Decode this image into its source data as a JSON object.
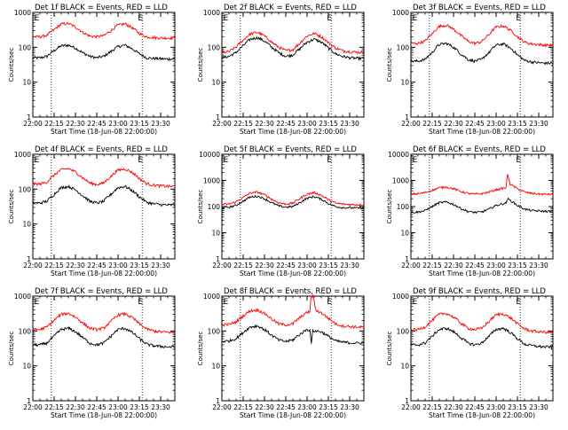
{
  "figure": {
    "background": "#ffffff",
    "axis_color": "#000000",
    "events_color": "#000000",
    "lld_color": "#ff0000",
    "xlabel": "Start Time (18-Jun-08 22:00:00)",
    "ylabel": "Counts/sec",
    "x_tick_labels": [
      "22:00",
      "22:15",
      "22:30",
      "22:45",
      "23:00",
      "23:15",
      "23:30"
    ],
    "x_tick_minutes": [
      0,
      15,
      30,
      45,
      60,
      75,
      90
    ],
    "xlim_minutes": [
      0,
      100
    ],
    "ylim": [
      1,
      1000
    ],
    "y_tick_labels": [
      "1",
      "10",
      "100",
      "1000"
    ],
    "y_tick_values": [
      1,
      10,
      100,
      1000
    ],
    "vline_minutes": [
      13,
      77
    ],
    "marker_labels": [
      "E",
      "E"
    ],
    "marker_minutes": [
      1,
      74
    ]
  },
  "chart_data": [
    {
      "type": "line",
      "title": "Det 1f  BLACK = Events, RED = LLD",
      "xlabel": "Start Time (18-Jun-08 22:00:00)",
      "ylabel": "Counts/sec",
      "xlim_minutes": [
        0,
        100
      ],
      "ylim": [
        1,
        1000
      ],
      "series": [
        {
          "name": "Events",
          "color": "#000000",
          "x": [
            0,
            5,
            10,
            15,
            20,
            25,
            30,
            35,
            40,
            45,
            50,
            55,
            60,
            65,
            70,
            75,
            80,
            85,
            90,
            95,
            100
          ],
          "values": [
            50,
            50,
            55,
            80,
            110,
            115,
            95,
            70,
            55,
            50,
            55,
            75,
            105,
            115,
            90,
            65,
            50,
            48,
            47,
            46,
            46
          ]
        },
        {
          "name": "LLD",
          "color": "#ff0000",
          "x": [
            0,
            5,
            10,
            15,
            20,
            25,
            30,
            35,
            40,
            45,
            50,
            55,
            60,
            65,
            70,
            75,
            80,
            85,
            90,
            95,
            100
          ],
          "values": [
            200,
            200,
            220,
            320,
            460,
            480,
            380,
            270,
            210,
            200,
            215,
            300,
            430,
            470,
            360,
            250,
            200,
            190,
            185,
            185,
            185
          ]
        }
      ]
    },
    {
      "type": "line",
      "title": "Det 2f  BLACK = Events, RED = LLD",
      "xlabel": "Start Time (18-Jun-08 22:00:00)",
      "ylabel": "Counts/sec",
      "xlim_minutes": [
        0,
        100
      ],
      "ylim": [
        1,
        1000
      ],
      "series": [
        {
          "name": "Events",
          "color": "#000000",
          "x": [
            0,
            5,
            10,
            15,
            20,
            25,
            30,
            35,
            40,
            45,
            50,
            55,
            60,
            65,
            70,
            75,
            80,
            85,
            90,
            95,
            100
          ],
          "values": [
            50,
            55,
            70,
            110,
            170,
            190,
            150,
            100,
            70,
            55,
            60,
            90,
            140,
            170,
            140,
            95,
            65,
            55,
            50,
            48,
            48
          ]
        },
        {
          "name": "LLD",
          "color": "#ff0000",
          "x": [
            0,
            5,
            10,
            15,
            20,
            25,
            30,
            35,
            40,
            45,
            50,
            55,
            60,
            65,
            70,
            75,
            80,
            85,
            90,
            95,
            100
          ],
          "values": [
            70,
            75,
            100,
            160,
            240,
            270,
            210,
            140,
            100,
            80,
            85,
            130,
            210,
            250,
            200,
            135,
            95,
            80,
            75,
            72,
            72
          ]
        }
      ]
    },
    {
      "type": "line",
      "title": "Det 3f  BLACK = Events, RED = LLD",
      "xlabel": "Start Time (18-Jun-08 22:00:00)",
      "ylabel": "Counts/sec",
      "xlim_minutes": [
        0,
        100
      ],
      "ylim": [
        1,
        1000
      ],
      "series": [
        {
          "name": "Events",
          "color": "#000000",
          "x": [
            0,
            5,
            10,
            15,
            20,
            25,
            30,
            35,
            40,
            45,
            50,
            55,
            60,
            65,
            70,
            75,
            80,
            85,
            90,
            95,
            100
          ],
          "values": [
            40,
            40,
            45,
            70,
            120,
            130,
            100,
            65,
            45,
            40,
            45,
            70,
            115,
            125,
            95,
            60,
            42,
            38,
            36,
            35,
            35
          ]
        },
        {
          "name": "LLD",
          "color": "#ff0000",
          "x": [
            0,
            5,
            10,
            15,
            20,
            25,
            30,
            35,
            40,
            45,
            50,
            55,
            60,
            65,
            70,
            75,
            80,
            85,
            90,
            95,
            100
          ],
          "values": [
            130,
            130,
            150,
            240,
            400,
            430,
            330,
            220,
            150,
            130,
            145,
            230,
            380,
            410,
            310,
            200,
            140,
            125,
            120,
            115,
            115
          ]
        }
      ]
    },
    {
      "type": "line",
      "title": "Det 4f  BLACK = Events, RED = LLD",
      "xlabel": "Start Time (18-Jun-08 22:00:00)",
      "ylabel": "Counts/sec",
      "xlim_minutes": [
        0,
        100
      ],
      "ylim": [
        1,
        1000
      ],
      "series": [
        {
          "name": "Events",
          "color": "#000000",
          "x": [
            0,
            5,
            10,
            15,
            20,
            25,
            30,
            35,
            40,
            45,
            50,
            55,
            60,
            65,
            70,
            75,
            80,
            85,
            90,
            95,
            100
          ],
          "values": [
            40,
            40,
            45,
            70,
            110,
            120,
            95,
            65,
            45,
            40,
            45,
            70,
            110,
            120,
            90,
            60,
            42,
            38,
            36,
            35,
            35
          ]
        },
        {
          "name": "LLD",
          "color": "#ff0000",
          "x": [
            0,
            5,
            10,
            15,
            20,
            25,
            30,
            35,
            40,
            45,
            50,
            55,
            60,
            65,
            70,
            75,
            80,
            85,
            90,
            95,
            100
          ],
          "values": [
            140,
            140,
            160,
            250,
            360,
            390,
            310,
            210,
            150,
            135,
            150,
            230,
            350,
            380,
            300,
            200,
            145,
            130,
            125,
            120,
            120
          ]
        }
      ]
    },
    {
      "type": "line",
      "title": "Det 5f  BLACK = Events, RED = LLD",
      "xlabel": "Start Time (18-Jun-08 22:00:00)",
      "ylabel": "Counts/sec",
      "xlim_minutes": [
        0,
        100
      ],
      "ylim": [
        1,
        10000
      ],
      "series": [
        {
          "name": "Events",
          "color": "#000000",
          "x": [
            0,
            5,
            10,
            15,
            20,
            25,
            30,
            35,
            40,
            45,
            50,
            55,
            60,
            65,
            70,
            75,
            80,
            85,
            90,
            95,
            100
          ],
          "values": [
            90,
            95,
            110,
            160,
            230,
            250,
            200,
            140,
            105,
            95,
            100,
            140,
            210,
            240,
            190,
            130,
            100,
            92,
            90,
            88,
            88
          ]
        },
        {
          "name": "LLD",
          "color": "#ff0000",
          "x": [
            0,
            5,
            10,
            15,
            20,
            25,
            30,
            35,
            40,
            45,
            50,
            55,
            60,
            65,
            70,
            75,
            80,
            85,
            90,
            95,
            100
          ],
          "values": [
            120,
            125,
            150,
            220,
            330,
            360,
            280,
            190,
            140,
            125,
            135,
            200,
            300,
            340,
            270,
            180,
            135,
            125,
            120,
            118,
            118
          ]
        }
      ]
    },
    {
      "type": "line",
      "title": "Det 6f  BLACK = Events, RED = LLD",
      "xlabel": "Start Time (18-Jun-08 22:00:00)",
      "ylabel": "Counts/sec",
      "xlim_minutes": [
        0,
        100
      ],
      "ylim": [
        1,
        10000
      ],
      "series": [
        {
          "name": "Events",
          "color": "#000000",
          "x": [
            0,
            5,
            10,
            15,
            20,
            25,
            30,
            35,
            40,
            45,
            50,
            55,
            60,
            65,
            67,
            68,
            70,
            75,
            80,
            85,
            90,
            95,
            100
          ],
          "values": [
            60,
            62,
            70,
            100,
            140,
            150,
            120,
            85,
            65,
            60,
            62,
            80,
            110,
            130,
            135,
            200,
            170,
            110,
            80,
            70,
            68,
            66,
            66
          ]
        },
        {
          "name": "LLD",
          "color": "#ff0000",
          "x": [
            0,
            5,
            10,
            15,
            20,
            25,
            30,
            35,
            40,
            45,
            50,
            55,
            60,
            65,
            67,
            68,
            70,
            75,
            80,
            85,
            90,
            95,
            100
          ],
          "values": [
            300,
            310,
            340,
            420,
            520,
            560,
            480,
            380,
            320,
            300,
            310,
            360,
            440,
            500,
            520,
            1600,
            700,
            480,
            360,
            320,
            300,
            295,
            295
          ]
        }
      ]
    },
    {
      "type": "line",
      "title": "Det 7f  BLACK = Events, RED = LLD",
      "xlabel": "Start Time (18-Jun-08 22:00:00)",
      "ylabel": "Counts/sec",
      "xlim_minutes": [
        0,
        100
      ],
      "ylim": [
        1,
        1000
      ],
      "series": [
        {
          "name": "Events",
          "color": "#000000",
          "x": [
            0,
            5,
            10,
            15,
            20,
            25,
            30,
            35,
            40,
            45,
            50,
            55,
            60,
            65,
            70,
            75,
            80,
            85,
            90,
            95,
            100
          ],
          "values": [
            40,
            40,
            45,
            70,
            110,
            120,
            95,
            65,
            45,
            40,
            45,
            70,
            110,
            120,
            90,
            60,
            42,
            38,
            36,
            35,
            35
          ]
        },
        {
          "name": "LLD",
          "color": "#ff0000",
          "x": [
            0,
            5,
            10,
            15,
            20,
            25,
            30,
            35,
            40,
            45,
            50,
            55,
            60,
            65,
            70,
            75,
            80,
            85,
            90,
            95,
            100
          ],
          "values": [
            110,
            110,
            130,
            200,
            300,
            320,
            250,
            170,
            120,
            110,
            120,
            185,
            290,
            310,
            240,
            160,
            115,
            100,
            95,
            92,
            92
          ]
        }
      ]
    },
    {
      "type": "line",
      "title": "Det 8f  BLACK = Events, RED = LLD",
      "xlabel": "Start Time (18-Jun-08 22:00:00)",
      "ylabel": "Counts/sec",
      "xlim_minutes": [
        0,
        100
      ],
      "ylim": [
        1,
        1000
      ],
      "series": [
        {
          "name": "Events",
          "color": "#000000",
          "x": [
            0,
            5,
            10,
            15,
            20,
            25,
            30,
            35,
            40,
            45,
            50,
            55,
            60,
            62,
            63,
            64,
            66,
            70,
            75,
            80,
            85,
            90,
            95,
            100
          ],
          "values": [
            50,
            52,
            60,
            90,
            130,
            140,
            110,
            75,
            55,
            50,
            55,
            80,
            110,
            105,
            40,
            100,
            100,
            95,
            70,
            52,
            48,
            46,
            45,
            45
          ]
        },
        {
          "name": "LLD",
          "color": "#ff0000",
          "x": [
            0,
            5,
            10,
            15,
            20,
            25,
            30,
            35,
            40,
            45,
            50,
            55,
            60,
            62,
            63,
            64,
            66,
            70,
            75,
            80,
            85,
            90,
            95,
            100
          ],
          "values": [
            150,
            155,
            180,
            270,
            380,
            400,
            320,
            220,
            160,
            150,
            160,
            240,
            340,
            360,
            1000,
            1000,
            400,
            330,
            230,
            160,
            140,
            135,
            130,
            130
          ]
        }
      ]
    },
    {
      "type": "line",
      "title": "Det 9f  BLACK = Events, RED = LLD",
      "xlabel": "Start Time (18-Jun-08 22:00:00)",
      "ylabel": "Counts/sec",
      "xlim_minutes": [
        0,
        100
      ],
      "ylim": [
        1,
        1000
      ],
      "series": [
        {
          "name": "Events",
          "color": "#000000",
          "x": [
            0,
            5,
            10,
            15,
            20,
            25,
            30,
            35,
            40,
            45,
            50,
            55,
            60,
            65,
            70,
            75,
            80,
            85,
            90,
            95,
            100
          ],
          "values": [
            40,
            40,
            45,
            70,
            110,
            120,
            95,
            65,
            45,
            40,
            45,
            70,
            110,
            120,
            90,
            60,
            42,
            38,
            36,
            35,
            35
          ]
        },
        {
          "name": "LLD",
          "color": "#ff0000",
          "x": [
            0,
            5,
            10,
            15,
            20,
            25,
            30,
            35,
            40,
            45,
            50,
            55,
            60,
            65,
            70,
            75,
            80,
            85,
            90,
            95,
            100
          ],
          "values": [
            110,
            110,
            130,
            200,
            300,
            320,
            250,
            170,
            120,
            110,
            120,
            185,
            290,
            310,
            240,
            160,
            115,
            100,
            95,
            92,
            92
          ]
        }
      ]
    }
  ]
}
